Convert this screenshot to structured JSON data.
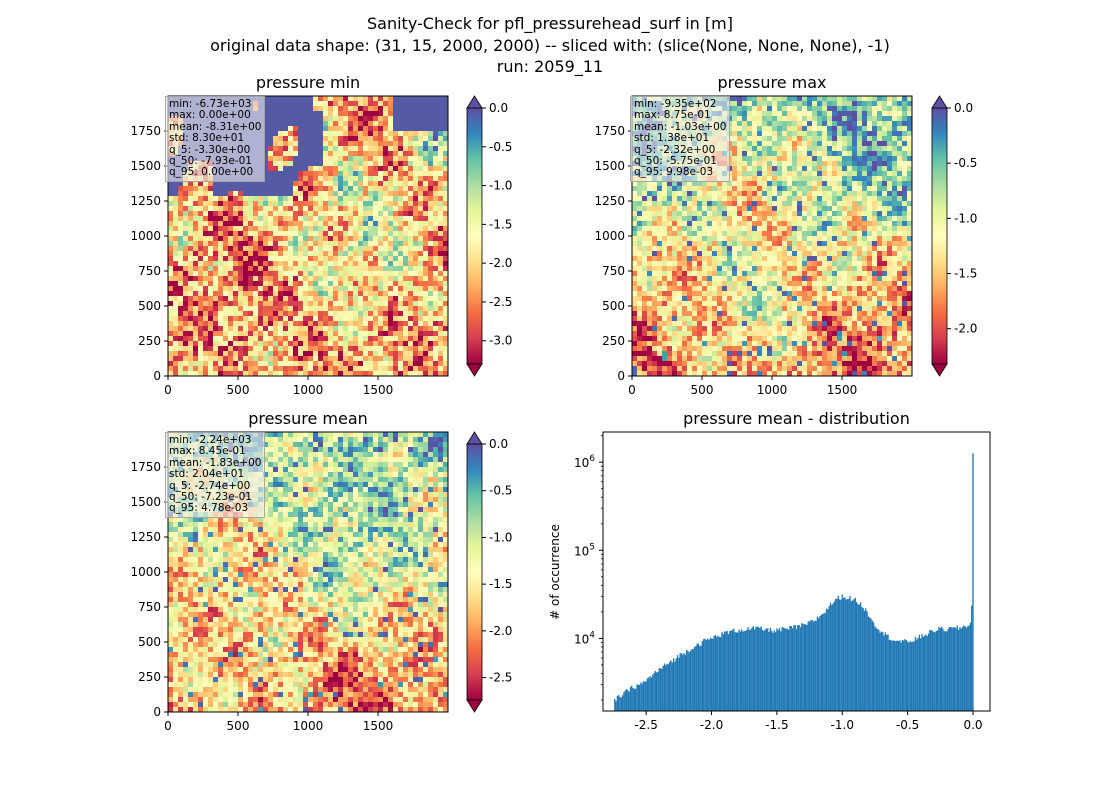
{
  "suptitle": [
    "Sanity-Check for pfl_pressurehead_surf in [m]",
    "original data shape: (31, 15, 2000, 2000) -- sliced with: (slice(None, None, None), -1)",
    "run: 2059_11"
  ],
  "colors": {
    "hist_bar": "#1f77b4",
    "spectral": [
      "#9e0142",
      "#d53e4f",
      "#f46d43",
      "#fdae61",
      "#fee08b",
      "#ffffbf",
      "#e6f598",
      "#abdda4",
      "#66c2a5",
      "#3288bd",
      "#5e4fa2"
    ]
  },
  "chart_data": [
    {
      "type": "heatmap",
      "title": "pressure min",
      "colormap": "Spectral",
      "xlim": [
        0,
        2000
      ],
      "ylim": [
        0,
        2000
      ],
      "xticks": [
        0,
        500,
        1000,
        1500
      ],
      "yticks": [
        0,
        250,
        500,
        750,
        1000,
        1250,
        1500,
        1750
      ],
      "colorbar": {
        "range": [
          -3.3,
          0.0
        ],
        "ticks": [
          "0.0",
          "-0.5",
          "-1.0",
          "-1.5",
          "-2.0",
          "-2.5",
          "-3.0"
        ],
        "extend": [
          "max",
          "min"
        ]
      },
      "stats": [
        "min: -6.73e+03",
        "max: 0.00e+00",
        "mean: -8.31e+00",
        "std: 8.30e+01",
        "q_5: -3.30e+00",
        "q_50: -7.93e-01",
        "q_95: 0.00e+00"
      ]
    },
    {
      "type": "heatmap",
      "title": "pressure max",
      "colormap": "Spectral",
      "xlim": [
        0,
        2000
      ],
      "ylim": [
        0,
        2000
      ],
      "xticks": [
        0,
        500,
        1000,
        1500
      ],
      "yticks": [
        0,
        250,
        500,
        750,
        1000,
        1250,
        1500,
        1750
      ],
      "colorbar": {
        "range": [
          -2.32,
          0.0
        ],
        "ticks": [
          "0.0",
          "-0.5",
          "-1.0",
          "-1.5",
          "-2.0"
        ],
        "extend": [
          "max",
          "min"
        ]
      },
      "stats": [
        "min: -9.35e+02",
        "max: 8.75e-01",
        "mean: -1.03e+00",
        "std: 1.38e+01",
        "q_5: -2.32e+00",
        "q_50: -5.75e-01",
        "q_95: 9.98e-03"
      ]
    },
    {
      "type": "heatmap",
      "title": "pressure mean",
      "colormap": "Spectral",
      "xlim": [
        0,
        2000
      ],
      "ylim": [
        0,
        2000
      ],
      "xticks": [
        0,
        500,
        1000,
        1500
      ],
      "yticks": [
        0,
        250,
        500,
        750,
        1000,
        1250,
        1500,
        1750
      ],
      "colorbar": {
        "range": [
          -2.74,
          0.0
        ],
        "ticks": [
          "0.0",
          "-0.5",
          "-1.0",
          "-1.5",
          "-2.0",
          "-2.5"
        ],
        "extend": [
          "max",
          "min"
        ]
      },
      "stats": [
        "min: -2.24e+03",
        "max: 8.45e-01",
        "mean: -1.83e+00",
        "std: 2.04e+01",
        "q_5: -2.74e+00",
        "q_50: -7.23e-01",
        "q_95: 4.78e-03"
      ]
    },
    {
      "type": "bar",
      "subtype": "histogram",
      "title": "pressure mean - distribution",
      "xlabel": "",
      "ylabel": "# of occurrence",
      "yscale": "log",
      "xlim": [
        -2.83,
        0.13
      ],
      "ylim": [
        1500,
        2200000
      ],
      "xticks": [
        "-2.5",
        "-2.0",
        "-1.5",
        "-1.0",
        "-0.5",
        "0.0"
      ],
      "yticks": [
        {
          "value": 10000,
          "base": "10",
          "exp": "4"
        },
        {
          "value": 100000,
          "base": "10",
          "exp": "5"
        },
        {
          "value": 1000000,
          "base": "10",
          "exp": "6"
        }
      ],
      "bin_width": 0.01,
      "profile": [
        [
          -2.74,
          2000
        ],
        [
          -2.7,
          2200
        ],
        [
          -2.65,
          2500
        ],
        [
          -2.6,
          2800
        ],
        [
          -2.55,
          3000
        ],
        [
          -2.5,
          3300
        ],
        [
          -2.45,
          3900
        ],
        [
          -2.4,
          4400
        ],
        [
          -2.35,
          5000
        ],
        [
          -2.3,
          5600
        ],
        [
          -2.25,
          6300
        ],
        [
          -2.2,
          7000
        ],
        [
          -2.15,
          7800
        ],
        [
          -2.1,
          8600
        ],
        [
          -2.05,
          9400
        ],
        [
          -2.0,
          10000
        ],
        [
          -1.95,
          10800
        ],
        [
          -1.9,
          11500
        ],
        [
          -1.85,
          12000
        ],
        [
          -1.8,
          12400
        ],
        [
          -1.75,
          12700
        ],
        [
          -1.7,
          12900
        ],
        [
          -1.65,
          13000
        ],
        [
          -1.6,
          12700
        ],
        [
          -1.55,
          12400
        ],
        [
          -1.5,
          12400
        ],
        [
          -1.45,
          12700
        ],
        [
          -1.4,
          13000
        ],
        [
          -1.35,
          13500
        ],
        [
          -1.3,
          14000
        ],
        [
          -1.25,
          15000
        ],
        [
          -1.2,
          16500
        ],
        [
          -1.15,
          19000
        ],
        [
          -1.1,
          23000
        ],
        [
          -1.05,
          28000
        ],
        [
          -1.0,
          30000
        ],
        [
          -0.95,
          29000
        ],
        [
          -0.9,
          27000
        ],
        [
          -0.85,
          24000
        ],
        [
          -0.8,
          19000
        ],
        [
          -0.75,
          14500
        ],
        [
          -0.7,
          12000
        ],
        [
          -0.65,
          10500
        ],
        [
          -0.6,
          9600
        ],
        [
          -0.55,
          9200
        ],
        [
          -0.5,
          9200
        ],
        [
          -0.45,
          9700
        ],
        [
          -0.4,
          10500
        ],
        [
          -0.35,
          11300
        ],
        [
          -0.3,
          12300
        ],
        [
          -0.25,
          12800
        ],
        [
          -0.2,
          12700
        ],
        [
          -0.15,
          13000
        ],
        [
          -0.1,
          13200
        ],
        [
          -0.05,
          13800
        ],
        [
          -0.02,
          15000
        ],
        [
          -0.01,
          24000
        ],
        [
          0.0,
          1230000
        ]
      ]
    }
  ]
}
